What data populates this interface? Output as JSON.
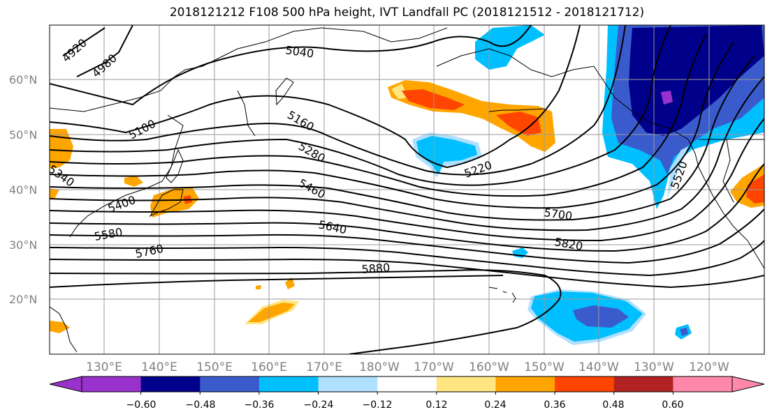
{
  "title": "2018121212 F108 500 hPa height, IVT Landfall PC (2018121512 - 2018121712)",
  "lat_labels": [
    "60°N",
    "50°N",
    "40°N",
    "30°N",
    "20°N"
  ],
  "lon_labels": [
    "130°E",
    "140°E",
    "150°E",
    "160°E",
    "170°E",
    "180°W",
    "170°W",
    "160°W",
    "150°W",
    "140°W",
    "130°W",
    "120°W"
  ],
  "contour_labels": [
    "4920",
    "4980",
    "5040",
    "5100",
    "5160",
    "5220",
    "5280",
    "5340",
    "5400",
    "5460",
    "5520",
    "5580",
    "5640",
    "5700",
    "5760",
    "5820",
    "5880"
  ],
  "colorbar": {
    "colors": [
      "#9932cc",
      "#00008b",
      "#3a5bcc",
      "#00bfff",
      "#b0e0ff",
      "#ffffff",
      "#ffe680",
      "#ffa500",
      "#ff4500",
      "#b22222",
      "#ff88aa"
    ],
    "ticks": [
      "−0.60",
      "−0.48",
      "−0.36",
      "−0.24",
      "−0.12",
      "0.12",
      "0.24",
      "0.36",
      "0.48",
      "0.60"
    ]
  },
  "fill_colors": {
    "deep_negative": "#00008b",
    "strong_negative": "#3a5bcc",
    "moderate_negative": "#00bfff",
    "weak_negative": "#b0e0ff",
    "weak_positive": "#ffe680",
    "moderate_positive": "#ffa500",
    "strong_positive": "#ff4500",
    "purple": "#9932cc"
  }
}
